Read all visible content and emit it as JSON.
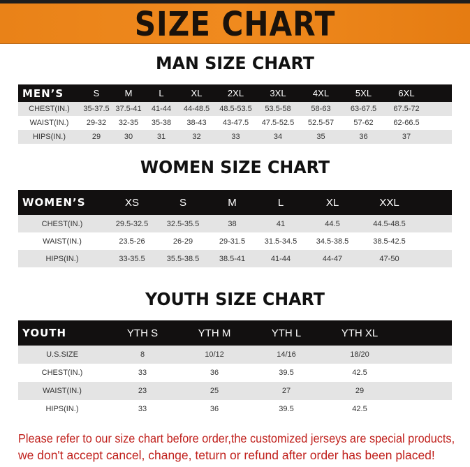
{
  "banner": {
    "title": "SIZE CHART",
    "color": "#f08a1e"
  },
  "men": {
    "title": "MAN SIZE CHART",
    "header_label": "MEN’S",
    "sizes": [
      "S",
      "M",
      "L",
      "XL",
      "2XL",
      "3XL",
      "4XL",
      "5XL",
      "6XL"
    ],
    "rows": [
      {
        "label": "CHEST(IN.)",
        "values": [
          "35-37.5",
          "37.5-41",
          "41-44",
          "44-48.5",
          "48.5-53.5",
          "53.5-58",
          "58-63",
          "63-67.5",
          "67.5-72"
        ]
      },
      {
        "label": "WAIST(IN.)",
        "values": [
          "29-32",
          "32-35",
          "35-38",
          "38-43",
          "43-47.5",
          "47.5-52.5",
          "52.5-57",
          "57-62",
          "62-66.5"
        ]
      },
      {
        "label": "HIPS(IN.)",
        "values": [
          "29",
          "30",
          "31",
          "32",
          "33",
          "34",
          "35",
          "36",
          "37"
        ]
      }
    ]
  },
  "women": {
    "title": "WOMEN SIZE CHART",
    "header_label": "WOMEN’S",
    "sizes": [
      "XS",
      "S",
      "M",
      "L",
      "XL",
      "XXL"
    ],
    "rows": [
      {
        "label": "CHEST(IN.)",
        "values": [
          "29.5-32.5",
          "32.5-35.5",
          "38",
          "41",
          "44.5",
          "44.5-48.5"
        ]
      },
      {
        "label": "WAIST(IN.)",
        "values": [
          "23.5-26",
          "26-29",
          "29-31.5",
          "31.5-34.5",
          "34.5-38.5",
          "38.5-42.5"
        ]
      },
      {
        "label": "HIPS(IN.)",
        "values": [
          "33-35.5",
          "35.5-38.5",
          "38.5-41",
          "41-44",
          "44-47",
          "47-50"
        ]
      }
    ]
  },
  "youth": {
    "title": "YOUTH SIZE CHART",
    "header_label": "YOUTH",
    "sizes": [
      "YTH S",
      "YTH M",
      "YTH L",
      "YTH XL"
    ],
    "rows": [
      {
        "label": "U.S.SIZE",
        "values": [
          "8",
          "10/12",
          "14/16",
          "18/20"
        ]
      },
      {
        "label": "CHEST(IN.)",
        "values": [
          "33",
          "36",
          "39.5",
          "42.5"
        ]
      },
      {
        "label": "WAIST(IN.)",
        "values": [
          "23",
          "25",
          "27",
          "29"
        ]
      },
      {
        "label": "HIPS(IN.)",
        "values": [
          "33",
          "36",
          "39.5",
          "42.5"
        ]
      }
    ]
  },
  "notice": {
    "line1": "Please refer to our size chart before order,the customized jerseys are special products,",
    "line2": "we don't accept cancel, change, teturn or refund after order has been placed!",
    "color": "#c0201c"
  }
}
